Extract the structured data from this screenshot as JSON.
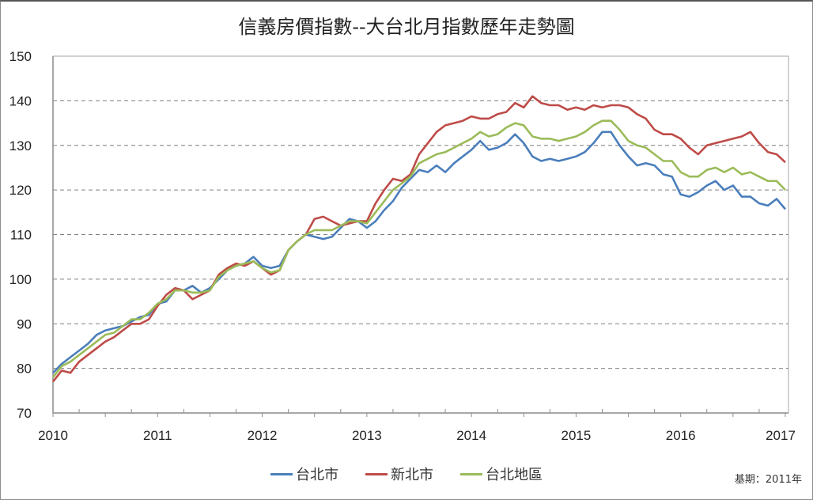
{
  "chart_data": {
    "type": "line",
    "title": "信義房價指數--大台北月指數歷年走勢圖",
    "xlabel": "",
    "ylabel": "",
    "ylim": [
      70,
      150
    ],
    "yticks": [
      70,
      80,
      90,
      100,
      110,
      120,
      130,
      140,
      150
    ],
    "xlim": [
      2010,
      2017.08
    ],
    "xticks": [
      "2010",
      "2011",
      "2012",
      "2013",
      "2014",
      "2015",
      "2016",
      "2017"
    ],
    "grid": "horizontal dashed",
    "legend_position": "bottom",
    "note": "基期：2011年",
    "x_start": "2010-01",
    "x_step": "month",
    "series": [
      {
        "name": "台北市",
        "color": "#4a7ebb",
        "values": [
          79.0,
          81.0,
          82.5,
          84.0,
          85.5,
          87.5,
          88.5,
          89.0,
          89.5,
          90.5,
          91.5,
          92.0,
          94.5,
          95.0,
          97.5,
          97.5,
          98.5,
          97.0,
          98.0,
          100.0,
          102.0,
          103.0,
          103.5,
          105.0,
          103.0,
          102.5,
          103.0,
          106.5,
          108.5,
          110.0,
          109.5,
          109.0,
          109.5,
          111.5,
          113.5,
          113.0,
          111.5,
          113.0,
          115.5,
          117.5,
          120.5,
          122.5,
          124.5,
          124.0,
          125.5,
          124.0,
          126.0,
          127.5,
          129.0,
          131.0,
          129.0,
          129.5,
          130.5,
          132.5,
          130.5,
          127.5,
          126.5,
          127.0,
          126.5,
          127.0,
          127.5,
          128.5,
          130.5,
          133.0,
          133.0,
          130.0,
          127.5,
          125.5,
          126.0,
          125.5,
          123.5,
          123.0,
          119.0,
          118.5,
          119.5,
          121.0,
          122.0,
          120.0,
          121.0,
          118.5,
          118.5,
          117.0,
          116.5,
          118.0,
          115.7
        ]
      },
      {
        "name": "新北市",
        "color": "#be4b48",
        "values": [
          77.0,
          79.5,
          79.0,
          81.5,
          83.0,
          84.5,
          86.0,
          87.0,
          88.5,
          90.0,
          90.0,
          91.0,
          94.0,
          96.5,
          98.0,
          97.5,
          95.5,
          96.5,
          97.5,
          101.0,
          102.5,
          103.5,
          103.0,
          104.0,
          102.5,
          101.0,
          102.0,
          106.5,
          108.5,
          110.0,
          113.5,
          114.0,
          113.0,
          112.0,
          112.5,
          113.0,
          113.0,
          117.0,
          120.0,
          122.5,
          122.0,
          123.5,
          128.0,
          130.5,
          133.0,
          134.5,
          135.0,
          135.5,
          136.5,
          136.0,
          136.0,
          137.0,
          137.5,
          139.5,
          138.5,
          141.0,
          139.5,
          139.0,
          139.0,
          138.0,
          138.5,
          138.0,
          139.0,
          138.5,
          139.0,
          139.0,
          138.5,
          137.0,
          136.0,
          133.5,
          132.5,
          132.5,
          131.5,
          129.5,
          128.0,
          130.0,
          130.5,
          131.0,
          131.5,
          132.0,
          133.0,
          130.5,
          128.5,
          128.0,
          126.2
        ]
      },
      {
        "name": "台北地區",
        "color": "#9bbb59",
        "values": [
          78.0,
          80.5,
          81.5,
          83.0,
          84.5,
          86.0,
          87.5,
          88.0,
          89.5,
          91.0,
          91.0,
          92.5,
          94.5,
          95.5,
          97.5,
          97.5,
          97.0,
          97.0,
          97.5,
          100.5,
          102.0,
          103.0,
          103.5,
          104.0,
          102.5,
          101.5,
          102.0,
          106.5,
          108.5,
          110.0,
          111.0,
          111.0,
          111.0,
          112.0,
          113.0,
          113.0,
          112.5,
          115.0,
          117.5,
          120.0,
          121.5,
          123.0,
          126.0,
          127.0,
          128.0,
          128.5,
          129.5,
          130.5,
          131.5,
          133.0,
          132.0,
          132.5,
          134.0,
          135.0,
          134.5,
          132.0,
          131.5,
          131.5,
          131.0,
          131.5,
          132.0,
          133.0,
          134.5,
          135.5,
          135.5,
          133.5,
          131.0,
          130.0,
          129.5,
          128.0,
          126.5,
          126.5,
          124.0,
          123.0,
          123.0,
          124.5,
          125.0,
          124.0,
          125.0,
          123.5,
          124.0,
          123.0,
          122.0,
          122.0,
          120.0
        ]
      }
    ]
  },
  "legend": {
    "items": [
      {
        "label": "台北市",
        "color": "#4a7ebb"
      },
      {
        "label": "新北市",
        "color": "#be4b48"
      },
      {
        "label": "台北地區",
        "color": "#9bbb59"
      }
    ]
  },
  "footer": {
    "base_note": "基期：2011年"
  }
}
